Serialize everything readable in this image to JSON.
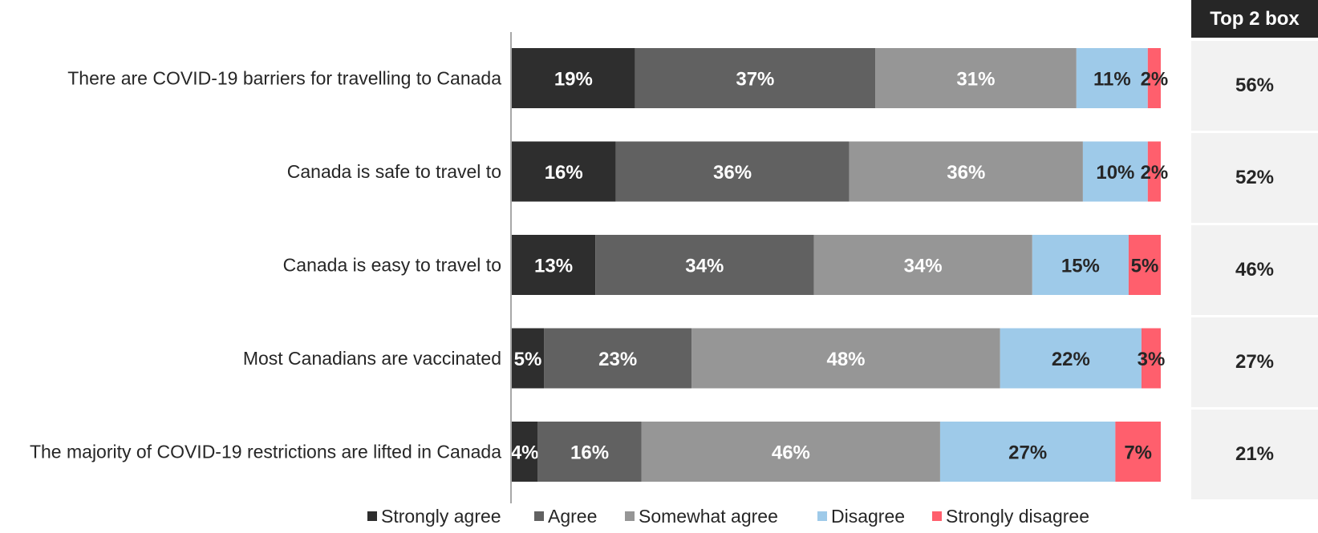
{
  "chart_data": {
    "type": "bar",
    "orientation": "horizontal",
    "stacked": true,
    "categories": [
      "There are COVID-19 barriers for travelling to Canada",
      "Canada is safe to travel to",
      "Canada is easy to travel to",
      "Most Canadians are vaccinated",
      "The majority of COVID-19 restrictions are lifted in Canada"
    ],
    "series": [
      {
        "name": "Strongly agree",
        "color": "#2e2e2e",
        "label_color": "#ffffff",
        "values": [
          19,
          16,
          13,
          5,
          4
        ],
        "labels": [
          "19%",
          "16%",
          "13%",
          "5%",
          "4%"
        ]
      },
      {
        "name": "Agree",
        "color": "#616161",
        "label_color": "#ffffff",
        "values": [
          37,
          36,
          34,
          23,
          16
        ],
        "labels": [
          "37%",
          "36%",
          "34%",
          "23%",
          "16%"
        ]
      },
      {
        "name": "Somewhat agree",
        "color": "#969696",
        "label_color": "#ffffff",
        "values": [
          31,
          36,
          34,
          48,
          46
        ],
        "labels": [
          "31%",
          "36%",
          "34%",
          "48%",
          "46%"
        ]
      },
      {
        "name": "Disagree",
        "color": "#9ecae9",
        "label_color": "#262626",
        "values": [
          11,
          10,
          15,
          22,
          27
        ],
        "labels": [
          "11%",
          "10%",
          "15%",
          "22%",
          "27%"
        ]
      },
      {
        "name": "Strongly disagree",
        "color": "#ff5f6d",
        "label_color": "#262626",
        "values": [
          2,
          2,
          5,
          3,
          7
        ],
        "labels": [
          "2%",
          "2%",
          "5%",
          "3%",
          "7%"
        ]
      }
    ],
    "legend_position": "bottom",
    "grid": false
  },
  "top2box": {
    "header": "Top 2 box",
    "values": [
      "56%",
      "52%",
      "46%",
      "27%",
      "21%"
    ]
  }
}
